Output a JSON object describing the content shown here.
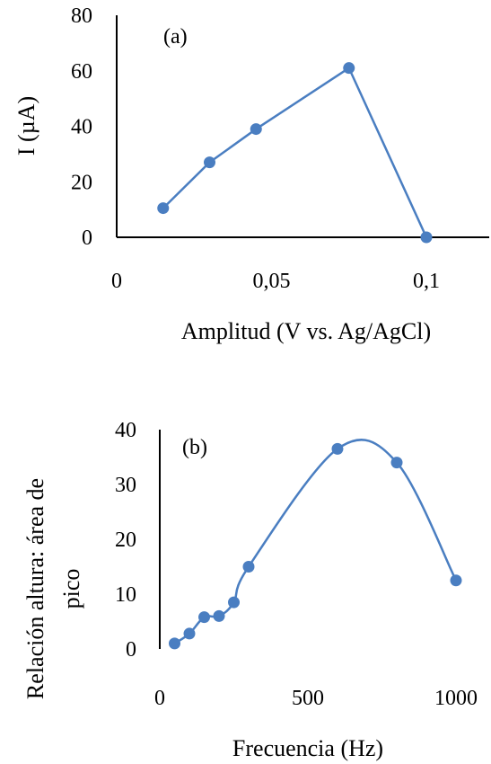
{
  "chart_data": [
    {
      "panel_label": "(a)",
      "type": "scatter",
      "xlabel": "Amplitud (V vs. Ag/AgCl)",
      "ylabel": "I (µA)",
      "xlim": [
        0,
        0.12
      ],
      "ylim": [
        0,
        80
      ],
      "x_ticks": [
        0,
        0.05,
        0.1
      ],
      "x_tick_labels": [
        "0",
        "0,05",
        "0,1"
      ],
      "y_ticks": [
        0,
        20,
        40,
        60,
        80
      ],
      "y_tick_labels": [
        "0",
        "20",
        "40",
        "60",
        "80"
      ],
      "grid": false,
      "line": "straight",
      "color": "#4a7ec1",
      "x": [
        0.015,
        0.03,
        0.045,
        0.075,
        0.1
      ],
      "y": [
        10.5,
        27,
        39,
        61,
        0
      ]
    },
    {
      "panel_label": "(b)",
      "type": "scatter",
      "xlabel": "Frecuencia (Hz)",
      "ylabel_lines": [
        "Relación altura: área de",
        "pico"
      ],
      "xlim": [
        0,
        1000
      ],
      "ylim": [
        0,
        40
      ],
      "x_ticks": [
        0,
        500,
        1000
      ],
      "x_tick_labels": [
        "0",
        "500",
        "1000"
      ],
      "y_ticks": [
        0,
        10,
        20,
        30,
        40
      ],
      "y_tick_labels": [
        "0",
        "10",
        "20",
        "30",
        "40"
      ],
      "grid": false,
      "line": "smooth",
      "color": "#4a7ec1",
      "x": [
        50,
        100,
        150,
        200,
        250,
        300,
        600,
        800,
        1000
      ],
      "y": [
        1,
        2.8,
        5.8,
        6,
        8.5,
        15,
        36.5,
        34,
        12.5
      ]
    }
  ]
}
